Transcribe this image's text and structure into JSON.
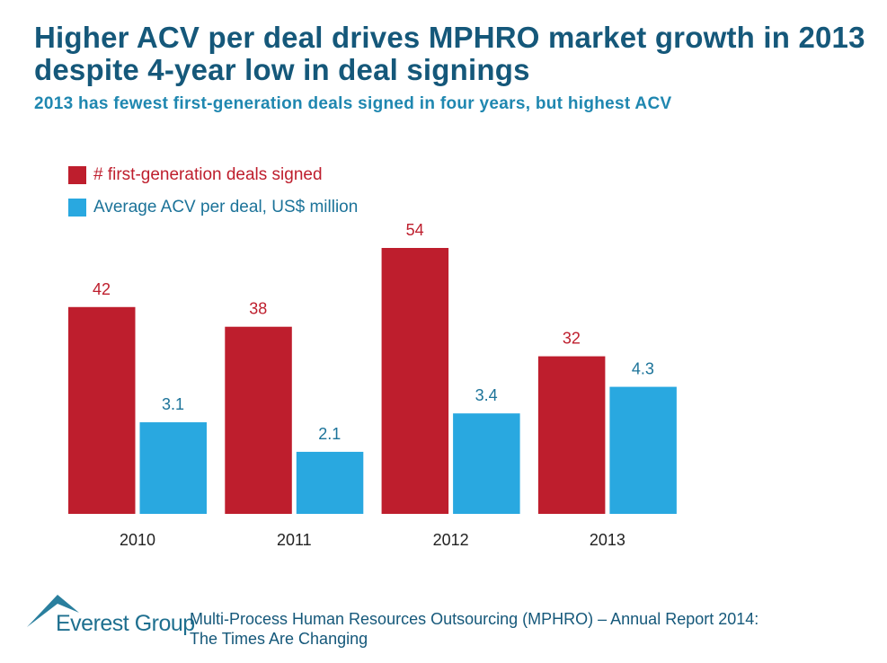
{
  "header": {
    "title": "Higher ACV per deal drives MPHRO market growth in 2013 despite 4-year low in deal signings",
    "subtitle": "2013 has fewest first-generation deals signed in four years, but highest ACV"
  },
  "colors": {
    "deals": "#be1e2d",
    "acv": "#29a8e0",
    "acv_label": "#1c7399",
    "title": "#15587a"
  },
  "chart_data": {
    "type": "bar",
    "categories": [
      "2010",
      "2011",
      "2012",
      "2013"
    ],
    "series": [
      {
        "name": "# first-generation deals signed",
        "values": [
          42,
          38,
          54,
          32
        ],
        "axis": "primary"
      },
      {
        "name": "Average ACV per deal, US$ million",
        "values": [
          3.1,
          2.1,
          3.4,
          4.3
        ],
        "axis": "secondary"
      }
    ],
    "legend_position": "top-left",
    "grid": false,
    "ylim_primary": [
      0,
      54
    ],
    "ylim_secondary": [
      0,
      9
    ],
    "xlabel": "",
    "ylabel": ""
  },
  "footer": {
    "logo_text": "Everest Group",
    "report": "Multi-Process Human Resources Outsourcing (MPHRO) – Annual Report 2014: The Times Are Changing"
  }
}
